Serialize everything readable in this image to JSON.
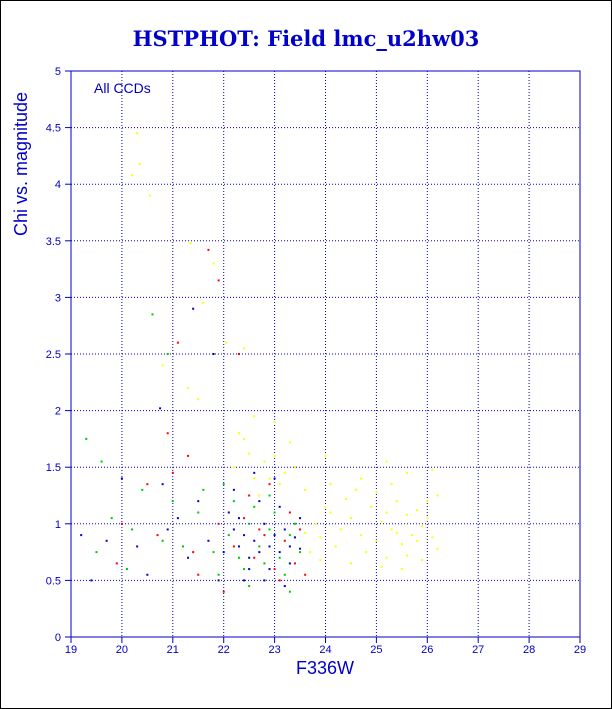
{
  "colors": {
    "axis": "#0000c8",
    "grid": "#0000c8",
    "text": "#0000c8",
    "background": "#ffffff",
    "frame": "#000000"
  },
  "chart_data": {
    "type": "scatter",
    "title": "HSTPHOT: Field lmc_u2hw03",
    "xlabel": "F336W",
    "ylabel": "Chi vs. magnitude",
    "annotation": "All CCDs",
    "xlim": [
      19,
      29
    ],
    "ylim": [
      0,
      5
    ],
    "x_ticks": [
      "19",
      "20",
      "21",
      "22",
      "23",
      "24",
      "25",
      "26",
      "27",
      "28",
      "29"
    ],
    "y_ticks": [
      "0",
      "0.5",
      "1",
      "1.5",
      "2",
      "2.5",
      "3",
      "3.5",
      "4",
      "4.5",
      "5"
    ],
    "grid": true,
    "series": [
      {
        "color": "#ffff00",
        "points": [
          [
            20.2,
            4.08
          ],
          [
            20.35,
            4.18
          ],
          [
            20.55,
            3.9
          ],
          [
            20.3,
            4.45
          ],
          [
            21.35,
            3.48
          ],
          [
            21.8,
            3.3
          ],
          [
            21.6,
            2.95
          ],
          [
            22.05,
            2.6
          ],
          [
            21.3,
            2.2
          ],
          [
            21.5,
            2.1
          ],
          [
            22.4,
            2.55
          ],
          [
            20.8,
            2.4
          ],
          [
            22.6,
            1.95
          ],
          [
            23.3,
            1.72
          ],
          [
            24.0,
            1.6
          ],
          [
            25.2,
            1.55
          ],
          [
            25.6,
            1.45
          ],
          [
            24.6,
            1.3
          ],
          [
            26.1,
            1.48
          ],
          [
            26.2,
            1.25
          ],
          [
            22.3,
            1.8
          ],
          [
            23.6,
            1.3
          ],
          [
            24.1,
            1.1
          ],
          [
            24.3,
            0.95
          ],
          [
            24.5,
            1.05
          ],
          [
            24.7,
            0.9
          ],
          [
            24.9,
            1.15
          ],
          [
            25.0,
            0.85
          ],
          [
            25.1,
            1.02
          ],
          [
            25.3,
            0.95
          ],
          [
            25.4,
            1.2
          ],
          [
            25.5,
            0.82
          ],
          [
            25.6,
            1.08
          ],
          [
            25.7,
            0.9
          ],
          [
            25.8,
            1.12
          ],
          [
            25.9,
            0.98
          ],
          [
            26.0,
            1.05
          ],
          [
            26.1,
            0.88
          ],
          [
            26.2,
            0.78
          ],
          [
            24.2,
            0.8
          ],
          [
            24.4,
            1.22
          ],
          [
            24.6,
            1.3
          ],
          [
            24.8,
            0.75
          ],
          [
            25.0,
            1.28
          ],
          [
            25.2,
            0.7
          ],
          [
            25.4,
            0.92
          ],
          [
            25.6,
            0.72
          ],
          [
            25.8,
            0.85
          ],
          [
            26.0,
            1.2
          ],
          [
            23.8,
            1.0
          ],
          [
            23.9,
            0.88
          ],
          [
            24.0,
            1.15
          ],
          [
            23.7,
            0.75
          ],
          [
            23.9,
            0.68
          ],
          [
            24.5,
            0.65
          ],
          [
            25.1,
            0.62
          ],
          [
            25.5,
            0.6
          ],
          [
            25.9,
            0.68
          ],
          [
            24.7,
            1.4
          ],
          [
            25.3,
            1.35
          ],
          [
            24.1,
            1.35
          ],
          [
            23.5,
            1.05
          ],
          [
            23.6,
            0.92
          ],
          [
            25.2,
            1.1
          ],
          [
            22.8,
            1.55
          ],
          [
            22.9,
            1.4
          ],
          [
            23.0,
            1.6
          ],
          [
            23.2,
            1.45
          ],
          [
            23.4,
            1.5
          ],
          [
            23.1,
            1.35
          ],
          [
            22.6,
            1.4
          ],
          [
            22.5,
            1.62
          ],
          [
            22.2,
            1.5
          ],
          [
            22.4,
            1.75
          ],
          [
            23.0,
            1.9
          ],
          [
            22.7,
            1.25
          ]
        ]
      },
      {
        "color": "#00c800",
        "points": [
          [
            20.6,
            2.85
          ],
          [
            20.9,
            2.5
          ],
          [
            19.3,
            1.75
          ],
          [
            19.6,
            1.55
          ],
          [
            20.0,
            1.4
          ],
          [
            20.4,
            1.3
          ],
          [
            21.0,
            1.2
          ],
          [
            21.5,
            1.1
          ],
          [
            19.8,
            1.05
          ],
          [
            20.2,
            0.95
          ],
          [
            20.8,
            0.85
          ],
          [
            21.2,
            0.8
          ],
          [
            21.8,
            0.75
          ],
          [
            22.1,
            0.9
          ],
          [
            22.3,
            0.7
          ],
          [
            22.5,
            1.0
          ],
          [
            22.7,
            0.8
          ],
          [
            22.9,
            0.95
          ],
          [
            23.1,
            0.7
          ],
          [
            23.3,
            0.9
          ],
          [
            22.4,
            0.6
          ],
          [
            22.6,
            1.15
          ],
          [
            22.8,
            0.65
          ],
          [
            23.0,
            1.1
          ],
          [
            23.2,
            0.55
          ],
          [
            23.4,
            1.0
          ],
          [
            21.6,
            1.3
          ],
          [
            22.0,
            1.35
          ],
          [
            19.5,
            0.75
          ],
          [
            20.1,
            0.6
          ],
          [
            21.9,
            0.55
          ],
          [
            22.2,
            1.2
          ],
          [
            23.5,
            0.75
          ],
          [
            22.9,
            1.25
          ],
          [
            23.3,
            0.4
          ],
          [
            22.5,
            0.45
          ]
        ]
      },
      {
        "color": "#ff0000",
        "points": [
          [
            21.1,
            2.6
          ],
          [
            21.7,
            3.42
          ],
          [
            21.9,
            3.15
          ],
          [
            22.3,
            2.5
          ],
          [
            20.9,
            1.8
          ],
          [
            21.3,
            1.6
          ],
          [
            21.0,
            1.45
          ],
          [
            20.5,
            1.35
          ],
          [
            20.0,
            1.0
          ],
          [
            20.7,
            0.9
          ],
          [
            21.4,
            0.75
          ],
          [
            21.9,
            1.0
          ],
          [
            22.2,
            0.8
          ],
          [
            22.4,
            1.05
          ],
          [
            22.6,
            0.7
          ],
          [
            22.8,
            0.9
          ],
          [
            23.0,
            0.6
          ],
          [
            23.2,
            0.85
          ],
          [
            23.4,
            0.65
          ],
          [
            23.5,
            0.95
          ],
          [
            22.5,
            1.25
          ],
          [
            22.9,
            1.35
          ],
          [
            23.1,
            0.5
          ],
          [
            22.0,
            0.4
          ],
          [
            21.5,
            0.55
          ],
          [
            23.6,
            0.55
          ],
          [
            19.9,
            0.65
          ],
          [
            22.7,
            0.95
          ],
          [
            23.3,
            1.1
          ]
        ]
      },
      {
        "color": "#0000c8",
        "points": [
          [
            20.75,
            2.02
          ],
          [
            21.4,
            2.9
          ],
          [
            21.8,
            2.5
          ],
          [
            20.0,
            1.4
          ],
          [
            20.8,
            1.35
          ],
          [
            21.5,
            1.2
          ],
          [
            19.2,
            0.9
          ],
          [
            19.7,
            0.85
          ],
          [
            20.3,
            0.8
          ],
          [
            20.9,
            0.95
          ],
          [
            21.3,
            0.7
          ],
          [
            21.7,
            0.85
          ],
          [
            22.0,
            0.75
          ],
          [
            22.2,
            0.95
          ],
          [
            22.3,
            0.8
          ],
          [
            22.4,
            0.9
          ],
          [
            22.5,
            0.7
          ],
          [
            22.6,
            0.85
          ],
          [
            22.7,
            0.75
          ],
          [
            22.8,
            1.0
          ],
          [
            22.9,
            0.8
          ],
          [
            23.0,
            0.9
          ],
          [
            23.1,
            0.75
          ],
          [
            23.2,
            0.95
          ],
          [
            23.3,
            0.8
          ],
          [
            23.4,
            0.88
          ],
          [
            23.5,
            0.78
          ],
          [
            22.1,
            1.1
          ],
          [
            22.3,
            1.05
          ],
          [
            22.5,
            0.6
          ],
          [
            22.7,
            1.2
          ],
          [
            22.9,
            0.6
          ],
          [
            23.1,
            1.15
          ],
          [
            23.3,
            0.65
          ],
          [
            23.5,
            1.05
          ],
          [
            22.4,
            0.5
          ],
          [
            22.8,
            0.5
          ],
          [
            23.2,
            0.45
          ],
          [
            21.1,
            1.05
          ],
          [
            20.5,
            0.55
          ],
          [
            19.4,
            0.5
          ],
          [
            21.9,
            0.5
          ],
          [
            22.6,
            1.45
          ],
          [
            23.0,
            1.4
          ],
          [
            22.2,
            1.3
          ]
        ]
      }
    ]
  }
}
